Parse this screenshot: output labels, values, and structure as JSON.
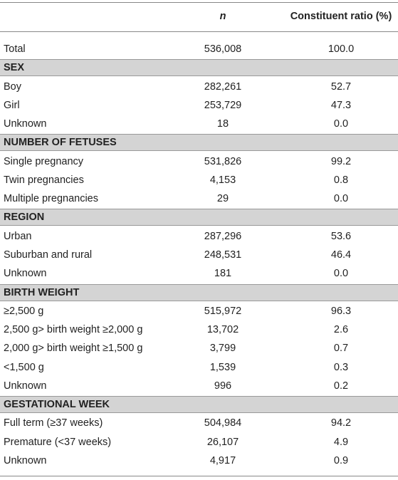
{
  "header": {
    "n": "n",
    "ratio": "Constituent ratio (%)"
  },
  "total": [
    "Total",
    "536,008",
    "100.0"
  ],
  "sections": [
    {
      "title": "SEX",
      "rows": [
        [
          "Boy",
          "282,261",
          "52.7"
        ],
        [
          "Girl",
          "253,729",
          "47.3"
        ],
        [
          "Unknown",
          "18",
          "0.0"
        ]
      ]
    },
    {
      "title": "NUMBER OF FETUSES",
      "rows": [
        [
          "Single pregnancy",
          "531,826",
          "99.2"
        ],
        [
          "Twin pregnancies",
          "4,153",
          "0.8"
        ],
        [
          "Multiple pregnancies",
          "29",
          "0.0"
        ]
      ]
    },
    {
      "title": "REGION",
      "rows": [
        [
          "Urban",
          "287,296",
          "53.6"
        ],
        [
          "Suburban and rural",
          "248,531",
          "46.4"
        ],
        [
          "Unknown",
          "181",
          "0.0"
        ]
      ]
    },
    {
      "title": "BIRTH WEIGHT",
      "rows": [
        [
          "≥2,500 g",
          "515,972",
          "96.3"
        ],
        [
          "2,500 g> birth weight ≥2,000 g",
          "13,702",
          "2.6"
        ],
        [
          "2,000 g> birth weight ≥1,500 g",
          "3,799",
          "0.7"
        ],
        [
          "<1,500 g",
          "1,539",
          "0.3"
        ],
        [
          "Unknown",
          "996",
          "0.2"
        ]
      ]
    },
    {
      "title": "GESTATIONAL WEEK",
      "rows": [
        [
          "Full term (≥37 weeks)",
          "504,984",
          "94.2"
        ],
        [
          "Premature (<37 weeks)",
          "26,107",
          "4.9"
        ],
        [
          "Unknown",
          "4,917",
          "0.9"
        ]
      ]
    }
  ]
}
